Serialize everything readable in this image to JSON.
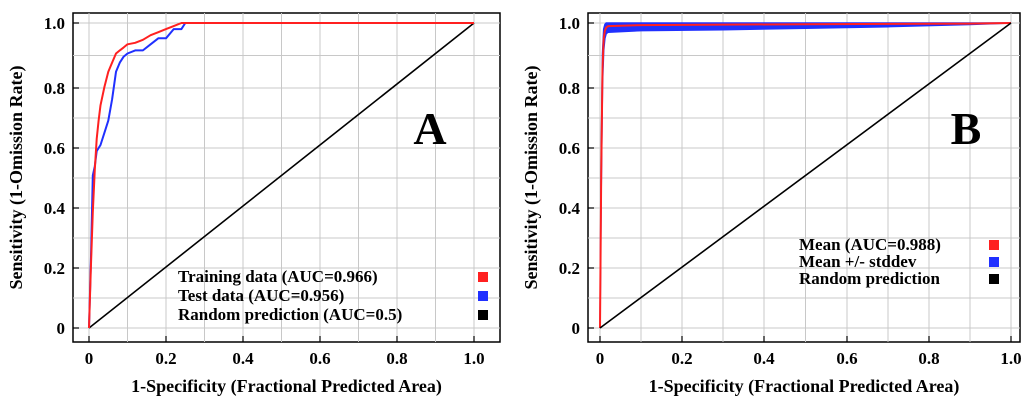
{
  "chart_data": [
    {
      "type": "line",
      "panel_label": "A",
      "xlabel": "1-Specificity (Fractional Predicted Area)",
      "ylabel": "Sensitivity (1-Omission Rate)",
      "xlim": [
        0,
        1
      ],
      "ylim": [
        0,
        1
      ],
      "xticks": [
        "0",
        "0.2",
        "0.4",
        "0.6",
        "0.8",
        "1.0"
      ],
      "yticks": [
        "0",
        "0.2",
        "0.4",
        "0.6",
        "0.8",
        "1.0"
      ],
      "grid": true,
      "legend_position": "bottom-right",
      "series": [
        {
          "name": "Training data (AUC=0.966)",
          "color": "#ff2020",
          "x": [
            0,
            0.005,
            0.01,
            0.015,
            0.02,
            0.025,
            0.03,
            0.04,
            0.05,
            0.06,
            0.07,
            0.08,
            0.09,
            0.1,
            0.12,
            0.14,
            0.16,
            0.18,
            0.2,
            0.22,
            0.24,
            0.25,
            0.3,
            0.5,
            0.8,
            1.0
          ],
          "y": [
            0,
            0.2,
            0.38,
            0.52,
            0.62,
            0.68,
            0.73,
            0.79,
            0.84,
            0.87,
            0.9,
            0.91,
            0.92,
            0.93,
            0.935,
            0.945,
            0.96,
            0.97,
            0.98,
            0.99,
            1.0,
            1.0,
            1.0,
            1.0,
            1.0,
            1.0
          ]
        },
        {
          "name": "Test data (AUC=0.956)",
          "color": "#2030ff",
          "x": [
            0,
            0.005,
            0.01,
            0.015,
            0.02,
            0.03,
            0.04,
            0.05,
            0.06,
            0.07,
            0.08,
            0.09,
            0.1,
            0.12,
            0.14,
            0.16,
            0.18,
            0.2,
            0.22,
            0.24,
            0.25,
            0.3,
            0.5,
            0.8,
            1.0
          ],
          "y": [
            0,
            0.22,
            0.5,
            0.53,
            0.58,
            0.6,
            0.64,
            0.68,
            0.75,
            0.84,
            0.87,
            0.89,
            0.9,
            0.91,
            0.91,
            0.93,
            0.95,
            0.95,
            0.98,
            0.98,
            1.0,
            1.0,
            1.0,
            1.0,
            1.0
          ]
        },
        {
          "name": "Random prediction (AUC=0.5)",
          "color": "#000000",
          "x": [
            0,
            1
          ],
          "y": [
            0,
            1
          ]
        }
      ]
    },
    {
      "type": "area",
      "panel_label": "B",
      "xlabel": "1-Specificity (Fractional Predicted Area)",
      "ylabel": "Sensitivity (1-Omission Rate)",
      "xlim": [
        0,
        1
      ],
      "ylim": [
        0,
        1
      ],
      "xticks": [
        "0",
        "0.2",
        "0.4",
        "0.6",
        "0.8",
        "1.0"
      ],
      "yticks": [
        "0",
        "0.2",
        "0.4",
        "0.6",
        "0.8",
        "1.0"
      ],
      "grid": true,
      "legend_position": "bottom-right",
      "series": [
        {
          "name": "Mean (AUC=0.988)",
          "color": "#ff2020",
          "x": [
            0,
            0.003,
            0.006,
            0.009,
            0.012,
            0.015,
            0.02,
            0.1,
            0.5,
            0.9,
            1.0
          ],
          "y": [
            0,
            0.5,
            0.85,
            0.95,
            0.975,
            0.985,
            0.99,
            0.993,
            0.996,
            0.998,
            1.0
          ]
        },
        {
          "name": "Mean +/- stddev",
          "color": "#2030ff",
          "x": [
            0,
            0.003,
            0.006,
            0.009,
            0.012,
            0.015,
            0.02,
            0.1,
            0.3,
            0.5,
            0.7,
            0.9,
            1.0
          ],
          "upper": [
            0,
            0.55,
            0.9,
            0.98,
            0.995,
            1.0,
            1.0,
            1.0,
            1.0,
            1.0,
            1.0,
            1.0,
            1.0
          ],
          "lower": [
            0,
            0.45,
            0.8,
            0.91,
            0.95,
            0.965,
            0.97,
            0.975,
            0.978,
            0.983,
            0.988,
            0.995,
            1.0
          ]
        },
        {
          "name": "Random prediction",
          "color": "#000000",
          "x": [
            0,
            1
          ],
          "y": [
            0,
            1
          ]
        }
      ]
    }
  ]
}
